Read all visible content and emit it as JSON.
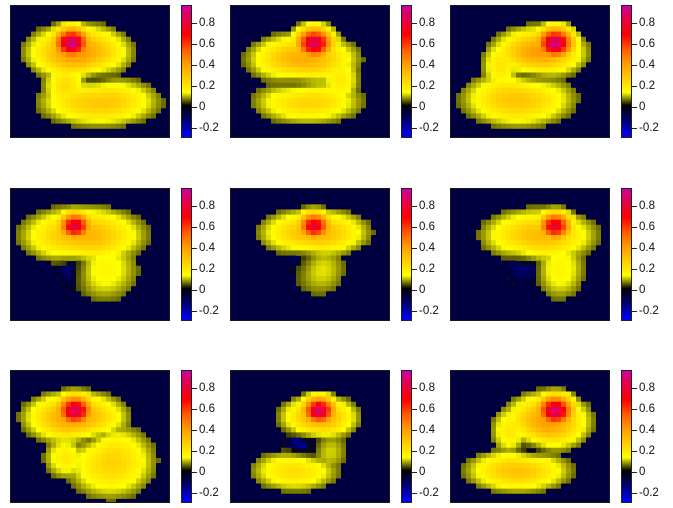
{
  "chart_data": {
    "type": "heatmap",
    "title": "",
    "layout": {
      "rows": 3,
      "cols": 3
    },
    "colormap": {
      "range": [
        -0.3,
        0.97
      ],
      "stops": [
        {
          "value": -0.3,
          "color": "#0000ff"
        },
        {
          "value": -0.15,
          "color": "#00007a"
        },
        {
          "value": 0.0,
          "color": "#000000"
        },
        {
          "value": 0.12,
          "color": "#ffff00"
        },
        {
          "value": 0.25,
          "color": "#ffd000"
        },
        {
          "value": 0.4,
          "color": "#ff9f00"
        },
        {
          "value": 0.55,
          "color": "#ff6000"
        },
        {
          "value": 0.7,
          "color": "#ff0000"
        },
        {
          "value": 0.87,
          "color": "#e00055"
        },
        {
          "value": 0.97,
          "color": "#cc00aa"
        }
      ]
    },
    "colorbar_ticks": [
      {
        "value": 0.8,
        "label": "0.8"
      },
      {
        "value": 0.6,
        "label": "0.6"
      },
      {
        "value": 0.4,
        "label": "0.4"
      },
      {
        "value": 0.2,
        "label": "0.2"
      },
      {
        "value": 0.0,
        "label": "0"
      },
      {
        "value": -0.2,
        "label": "-0.2"
      }
    ],
    "background_value": -0.08,
    "panels": [
      {
        "row": 0,
        "col": 0,
        "peak": {
          "x": 0.38,
          "y": 0.28,
          "value": 0.95,
          "r": 0.1
        },
        "blobs": [
          {
            "x": 0.42,
            "y": 0.35,
            "rx": 0.26,
            "ry": 0.17,
            "value": 0.45
          },
          {
            "x": 0.55,
            "y": 0.72,
            "rx": 0.32,
            "ry": 0.16,
            "value": 0.3
          },
          {
            "x": 0.35,
            "y": 0.6,
            "rx": 0.14,
            "ry": 0.18,
            "value": 0.22
          },
          {
            "x": 0.52,
            "y": 0.52,
            "rx": 0.12,
            "ry": 0.22,
            "value": -0.2
          }
        ]
      },
      {
        "row": 0,
        "col": 1,
        "peak": {
          "x": 0.52,
          "y": 0.28,
          "value": 0.9,
          "r": 0.1
        },
        "blobs": [
          {
            "x": 0.45,
            "y": 0.4,
            "rx": 0.28,
            "ry": 0.16,
            "value": 0.38
          },
          {
            "x": 0.48,
            "y": 0.72,
            "rx": 0.3,
            "ry": 0.15,
            "value": 0.25
          },
          {
            "x": 0.68,
            "y": 0.55,
            "rx": 0.12,
            "ry": 0.2,
            "value": 0.18
          },
          {
            "x": 0.42,
            "y": 0.55,
            "rx": 0.14,
            "ry": 0.16,
            "value": -0.2
          }
        ]
      },
      {
        "row": 0,
        "col": 2,
        "peak": {
          "x": 0.65,
          "y": 0.28,
          "value": 0.95,
          "r": 0.1
        },
        "blobs": [
          {
            "x": 0.55,
            "y": 0.35,
            "rx": 0.24,
            "ry": 0.16,
            "value": 0.42
          },
          {
            "x": 0.42,
            "y": 0.7,
            "rx": 0.3,
            "ry": 0.18,
            "value": 0.3
          },
          {
            "x": 0.32,
            "y": 0.45,
            "rx": 0.12,
            "ry": 0.2,
            "value": 0.2
          },
          {
            "x": 0.5,
            "y": 0.55,
            "rx": 0.14,
            "ry": 0.16,
            "value": -0.2
          }
        ]
      },
      {
        "row": 1,
        "col": 0,
        "peak": {
          "x": 0.4,
          "y": 0.28,
          "value": 0.85,
          "r": 0.09
        },
        "blobs": [
          {
            "x": 0.45,
            "y": 0.35,
            "rx": 0.32,
            "ry": 0.18,
            "value": 0.35
          },
          {
            "x": 0.58,
            "y": 0.6,
            "rx": 0.22,
            "ry": 0.25,
            "value": 0.15
          },
          {
            "x": 0.4,
            "y": 0.55,
            "rx": 0.12,
            "ry": 0.2,
            "value": -0.18
          }
        ]
      },
      {
        "row": 1,
        "col": 1,
        "peak": {
          "x": 0.52,
          "y": 0.28,
          "value": 0.82,
          "r": 0.09
        },
        "blobs": [
          {
            "x": 0.52,
            "y": 0.33,
            "rx": 0.28,
            "ry": 0.15,
            "value": 0.35
          },
          {
            "x": 0.55,
            "y": 0.6,
            "rx": 0.18,
            "ry": 0.22,
            "value": 0.12
          },
          {
            "x": 0.45,
            "y": 0.5,
            "rx": 0.12,
            "ry": 0.18,
            "value": -0.15
          }
        ]
      },
      {
        "row": 1,
        "col": 2,
        "peak": {
          "x": 0.65,
          "y": 0.28,
          "value": 0.82,
          "r": 0.09
        },
        "blobs": [
          {
            "x": 0.55,
            "y": 0.35,
            "rx": 0.3,
            "ry": 0.17,
            "value": 0.32
          },
          {
            "x": 0.68,
            "y": 0.6,
            "rx": 0.16,
            "ry": 0.24,
            "value": 0.15
          },
          {
            "x": 0.45,
            "y": 0.55,
            "rx": 0.12,
            "ry": 0.2,
            "value": -0.15
          }
        ]
      },
      {
        "row": 2,
        "col": 0,
        "peak": {
          "x": 0.4,
          "y": 0.3,
          "value": 0.9,
          "r": 0.1
        },
        "blobs": [
          {
            "x": 0.4,
            "y": 0.35,
            "rx": 0.26,
            "ry": 0.16,
            "value": 0.42
          },
          {
            "x": 0.62,
            "y": 0.68,
            "rx": 0.25,
            "ry": 0.25,
            "value": 0.25
          },
          {
            "x": 0.35,
            "y": 0.65,
            "rx": 0.14,
            "ry": 0.16,
            "value": 0.18
          },
          {
            "x": 0.5,
            "y": 0.5,
            "rx": 0.12,
            "ry": 0.18,
            "value": -0.2
          }
        ]
      },
      {
        "row": 2,
        "col": 1,
        "peak": {
          "x": 0.55,
          "y": 0.3,
          "value": 0.92,
          "r": 0.09
        },
        "blobs": [
          {
            "x": 0.55,
            "y": 0.35,
            "rx": 0.2,
            "ry": 0.14,
            "value": 0.38
          },
          {
            "x": 0.4,
            "y": 0.75,
            "rx": 0.25,
            "ry": 0.14,
            "value": 0.22
          },
          {
            "x": 0.6,
            "y": 0.6,
            "rx": 0.14,
            "ry": 0.18,
            "value": 0.12
          },
          {
            "x": 0.48,
            "y": 0.55,
            "rx": 0.14,
            "ry": 0.16,
            "value": -0.2
          }
        ]
      },
      {
        "row": 2,
        "col": 2,
        "peak": {
          "x": 0.65,
          "y": 0.3,
          "value": 0.92,
          "r": 0.1
        },
        "blobs": [
          {
            "x": 0.6,
            "y": 0.38,
            "rx": 0.22,
            "ry": 0.18,
            "value": 0.42
          },
          {
            "x": 0.42,
            "y": 0.75,
            "rx": 0.28,
            "ry": 0.14,
            "value": 0.3
          },
          {
            "x": 0.38,
            "y": 0.45,
            "rx": 0.12,
            "ry": 0.18,
            "value": 0.2
          },
          {
            "x": 0.5,
            "y": 0.55,
            "rx": 0.12,
            "ry": 0.18,
            "value": -0.2
          }
        ]
      }
    ]
  }
}
